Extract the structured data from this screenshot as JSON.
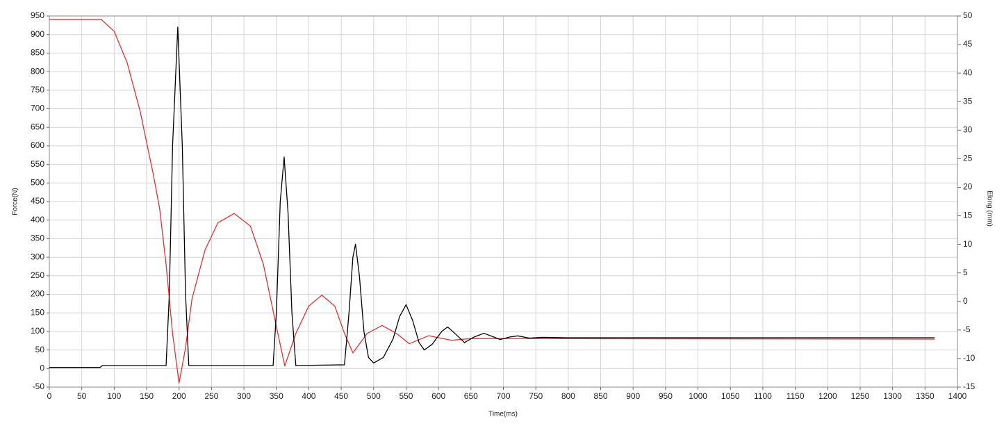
{
  "chart_data": {
    "type": "line",
    "xlabel": "Time(ms)",
    "ylabel": "Force(N)",
    "y2label": "Elong (mm)",
    "xlim": [
      0,
      1400
    ],
    "ylim": [
      -50,
      950
    ],
    "y2lim": [
      -15,
      50
    ],
    "xticks": [
      0,
      50,
      100,
      150,
      200,
      250,
      300,
      350,
      400,
      450,
      500,
      550,
      600,
      650,
      700,
      750,
      800,
      850,
      900,
      950,
      1000,
      1050,
      1100,
      1150,
      1200,
      1250,
      1300,
      1350,
      1400
    ],
    "yticks": [
      -50,
      0,
      50,
      100,
      150,
      200,
      250,
      300,
      350,
      400,
      450,
      500,
      550,
      600,
      650,
      700,
      750,
      800,
      850,
      900,
      950
    ],
    "y2ticks": [
      -15,
      -10,
      -5,
      0,
      5,
      10,
      15,
      20,
      25,
      30,
      35,
      40,
      45,
      50
    ],
    "grid": true,
    "series": [
      {
        "color": "#000000",
        "axis": "y",
        "x": [
          0,
          78,
          82,
          180,
          185,
          190,
          198,
          205,
          210,
          215,
          345,
          350,
          356,
          362,
          368,
          374,
          380,
          455,
          462,
          468,
          472,
          478,
          485,
          492,
          500,
          515,
          530,
          540,
          550,
          560,
          570,
          578,
          590,
          605,
          614,
          625,
          640,
          655,
          670,
          685,
          695,
          710,
          722,
          740,
          760,
          800,
          1365
        ],
        "values": [
          3,
          3,
          8,
          8,
          200,
          600,
          920,
          600,
          200,
          8,
          8,
          150,
          450,
          570,
          420,
          150,
          8,
          10,
          150,
          300,
          335,
          250,
          100,
          30,
          15,
          30,
          80,
          140,
          172,
          130,
          70,
          50,
          65,
          100,
          112,
          95,
          70,
          85,
          95,
          85,
          78,
          85,
          88,
          82,
          84,
          83,
          83
        ]
      },
      {
        "color": "#e03030",
        "axis": "y2",
        "x": [
          0,
          80,
          100,
          120,
          140,
          160,
          170,
          180,
          190,
          200,
          210,
          220,
          240,
          260,
          285,
          310,
          330,
          350,
          363,
          380,
          400,
          420,
          440,
          455,
          468,
          490,
          513,
          535,
          555,
          585,
          620,
          650,
          1365
        ],
        "values": [
          49.4,
          49.4,
          47.3,
          41.8,
          33.3,
          22.4,
          16.3,
          6.5,
          -5.6,
          -14.3,
          -8.1,
          0.5,
          9,
          13.8,
          15.4,
          13.2,
          6.5,
          -4.4,
          -11.3,
          -5.6,
          -0.8,
          1.1,
          -0.8,
          -5.6,
          -9,
          -5.6,
          -4.2,
          -5.6,
          -7.4,
          -6,
          -6.8,
          -6.5,
          -6.6
        ]
      }
    ]
  }
}
